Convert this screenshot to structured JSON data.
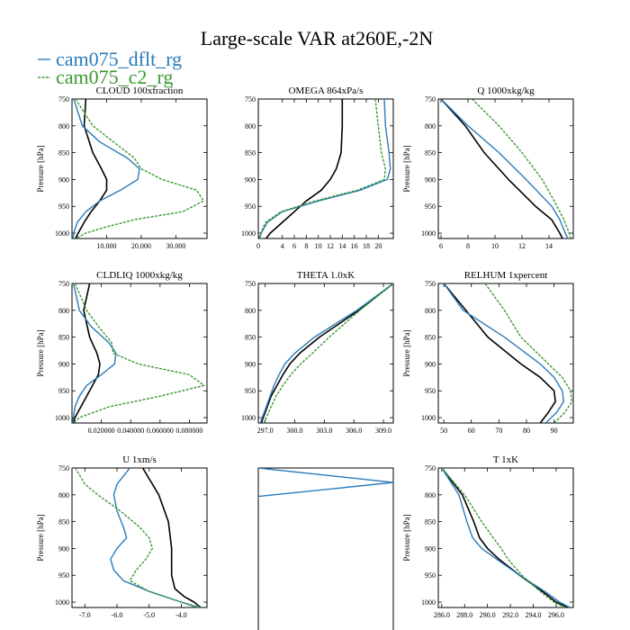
{
  "figure": {
    "title": "Large-scale VAR at260E,-2N",
    "legend": [
      {
        "label": "cam075_dflt_rg",
        "color": "#2b7bb9",
        "dashed": false
      },
      {
        "label": "cam075_c2_rg",
        "color": "#3a9a30",
        "dashed": true
      }
    ]
  },
  "colors": {
    "obs": "#000000",
    "dflt": "#2b7bb9",
    "c2": "#3a9a30"
  },
  "chart_data": [
    {
      "type": "line",
      "title": "CLOUD  100xfraction",
      "ylabel": "Pressure [hPa]",
      "xlim": [
        0,
        39
      ],
      "ylim": [
        1010,
        750
      ],
      "xticks": [
        10,
        20,
        30
      ],
      "xticklabels": [
        "10.000",
        "20.000",
        "30.000"
      ],
      "yticks": [
        750,
        800,
        850,
        900,
        950,
        1000
      ],
      "yticklabels": [
        "750",
        "800",
        "850",
        "900",
        "950",
        "1000"
      ],
      "series": [
        {
          "key": "obs",
          "p": [
            750,
            800,
            850,
            880,
            900,
            920,
            940,
            960,
            980,
            1000,
            1010
          ],
          "x": [
            4,
            3.5,
            6,
            8.5,
            10,
            10,
            8,
            5.5,
            3.5,
            1.8,
            1
          ]
        },
        {
          "key": "dflt",
          "p": [
            750,
            800,
            830,
            860,
            880,
            900,
            920,
            940,
            960,
            980,
            1000,
            1010
          ],
          "x": [
            0.5,
            3,
            8,
            16,
            19.5,
            19,
            14,
            8,
            4,
            1.5,
            0.5,
            0.3
          ]
        },
        {
          "key": "c2",
          "p": [
            750,
            800,
            830,
            860,
            880,
            900,
            920,
            940,
            960,
            975,
            990,
            1000,
            1010
          ],
          "x": [
            1,
            6,
            12,
            18,
            20,
            26,
            36,
            38,
            32,
            18,
            9,
            4,
            1
          ]
        }
      ]
    },
    {
      "type": "line",
      "title": "OMEGA  864xPa/s",
      "ylabel": "",
      "xlim": [
        0,
        22.5
      ],
      "ylim": [
        1010,
        750
      ],
      "xticks": [
        0,
        4,
        6,
        8,
        10,
        12,
        14,
        16,
        18,
        20
      ],
      "xticklabels": [
        "0",
        "4",
        "6",
        "8",
        "10",
        "12",
        "14",
        "16",
        "18",
        "20"
      ],
      "yticks": [
        750,
        800,
        850,
        900,
        950,
        1000
      ],
      "yticklabels": [
        "750",
        "800",
        "850",
        "900",
        "950",
        "1000"
      ],
      "series": [
        {
          "key": "obs",
          "p": [
            750,
            800,
            850,
            880,
            900,
            920,
            940,
            960,
            980,
            1000,
            1010
          ],
          "x": [
            14,
            14,
            13.8,
            13,
            12,
            10.5,
            8,
            6,
            4,
            2,
            1.3
          ]
        },
        {
          "key": "dflt",
          "p": [
            750,
            800,
            850,
            880,
            900,
            920,
            940,
            960,
            980,
            1000,
            1010
          ],
          "x": [
            21,
            21.2,
            21.8,
            22,
            21.5,
            17,
            10,
            4,
            1.5,
            0.5,
            0.2
          ]
        },
        {
          "key": "c2",
          "p": [
            750,
            800,
            850,
            880,
            900,
            920,
            940,
            960,
            980,
            1000,
            1010
          ],
          "x": [
            19.5,
            20,
            20.5,
            21.2,
            21,
            16.5,
            9.5,
            3.8,
            1.2,
            0.4,
            0.1
          ]
        }
      ]
    },
    {
      "type": "line",
      "title": "Q  1000xkg/kg",
      "ylabel": "Pressure [hPa]",
      "xlim": [
        5.8,
        15.8
      ],
      "ylim": [
        1010,
        750
      ],
      "xticks": [
        6,
        8,
        10,
        12,
        14
      ],
      "xticklabels": [
        "6",
        "8",
        "10",
        "12",
        "14"
      ],
      "yticks": [
        750,
        800,
        850,
        900,
        950,
        1000
      ],
      "yticklabels": [
        "750",
        "800",
        "850",
        "900",
        "950",
        "1000"
      ],
      "series": [
        {
          "key": "obs",
          "p": [
            750,
            800,
            850,
            900,
            950,
            975,
            1000,
            1010
          ],
          "x": [
            6,
            7.8,
            9.2,
            11,
            13,
            14.2,
            14.8,
            15
          ]
        },
        {
          "key": "dflt",
          "p": [
            750,
            800,
            850,
            900,
            950,
            975,
            1000,
            1010
          ],
          "x": [
            6,
            8,
            10.3,
            12.3,
            14.2,
            14.8,
            15.2,
            15.4
          ]
        },
        {
          "key": "c2",
          "p": [
            750,
            800,
            850,
            900,
            950,
            975,
            1000,
            1010
          ],
          "x": [
            8.3,
            10.3,
            12,
            13.5,
            14.6,
            15.1,
            15.5,
            15.6
          ]
        }
      ]
    },
    {
      "type": "line",
      "title": "CLDLIQ  1000xkg/kg",
      "ylabel": "Pressure [hPa]",
      "xlim": [
        0,
        0.092
      ],
      "ylim": [
        1010,
        750
      ],
      "xticks": [
        0.02,
        0.04,
        0.06,
        0.08
      ],
      "xticklabels": [
        "0.020000",
        "0.040000",
        "0.060000",
        "0.080000"
      ],
      "yticks": [
        750,
        800,
        850,
        900,
        950,
        1000
      ],
      "yticklabels": [
        "750",
        "800",
        "850",
        "900",
        "950",
        "1000"
      ],
      "series": [
        {
          "key": "obs",
          "p": [
            750,
            800,
            850,
            880,
            900,
            920,
            940,
            960,
            980,
            1000,
            1010
          ],
          "x": [
            0.012,
            0.008,
            0.012,
            0.017,
            0.019,
            0.018,
            0.014,
            0.01,
            0.006,
            0.002,
            0.001
          ]
        },
        {
          "key": "dflt",
          "p": [
            750,
            800,
            830,
            860,
            880,
            900,
            920,
            940,
            960,
            980,
            1000,
            1010
          ],
          "x": [
            0.001,
            0.005,
            0.013,
            0.025,
            0.03,
            0.029,
            0.02,
            0.01,
            0.005,
            0.002,
            0.001,
            0.0005
          ]
        },
        {
          "key": "c2",
          "p": [
            750,
            800,
            830,
            860,
            880,
            900,
            920,
            940,
            960,
            980,
            1000,
            1010
          ],
          "x": [
            0.002,
            0.01,
            0.018,
            0.027,
            0.028,
            0.045,
            0.08,
            0.09,
            0.06,
            0.025,
            0.005,
            0.001
          ]
        }
      ]
    },
    {
      "type": "line",
      "title": "THETA  1.0xK",
      "ylabel": "",
      "xlim": [
        296.3,
        310
      ],
      "ylim": [
        1010,
        750
      ],
      "xticks": [
        297,
        300,
        303,
        306,
        309
      ],
      "xticklabels": [
        "297.0",
        "300.0",
        "303.0",
        "306.0",
        "309.0"
      ],
      "yticks": [
        750,
        800,
        850,
        900,
        950,
        1000
      ],
      "yticklabels": [
        "750",
        "800",
        "850",
        "900",
        "950",
        "1000"
      ],
      "series": [
        {
          "key": "obs",
          "p": [
            750,
            800,
            850,
            880,
            900,
            920,
            940,
            960,
            980,
            1000,
            1010
          ],
          "x": [
            310,
            306.5,
            302.5,
            300.5,
            299.5,
            298.8,
            298.2,
            297.6,
            297.2,
            296.8,
            296.6
          ]
        },
        {
          "key": "dflt",
          "p": [
            750,
            800,
            850,
            880,
            900,
            920,
            940,
            960,
            980,
            1000,
            1010
          ],
          "x": [
            310,
            306.3,
            302,
            300,
            299,
            298.4,
            297.9,
            297.5,
            297.1,
            296.7,
            296.5
          ]
        },
        {
          "key": "c2",
          "p": [
            750,
            800,
            850,
            880,
            900,
            920,
            940,
            960,
            980,
            1000,
            1010
          ],
          "x": [
            310,
            306.6,
            303.5,
            301.8,
            300.6,
            299.6,
            298.8,
            298.1,
            297.6,
            297.1,
            296.9
          ]
        }
      ]
    },
    {
      "type": "line",
      "title": "RELHUM  1xpercent",
      "ylabel": "Pressure [hPa]",
      "xlim": [
        48,
        97
      ],
      "ylim": [
        1010,
        750
      ],
      "xticks": [
        50,
        60,
        70,
        80,
        90
      ],
      "xticklabels": [
        "50",
        "60",
        "70",
        "80",
        "90"
      ],
      "yticks": [
        750,
        800,
        850,
        900,
        950,
        1000
      ],
      "yticklabels": [
        "750",
        "800",
        "850",
        "900",
        "950",
        "1000"
      ],
      "series": [
        {
          "key": "obs",
          "p": [
            750,
            800,
            850,
            900,
            925,
            950,
            970,
            990,
            1010
          ],
          "x": [
            50,
            58,
            66,
            78,
            85,
            90,
            90.5,
            88,
            85
          ]
        },
        {
          "key": "dflt",
          "p": [
            750,
            800,
            850,
            900,
            925,
            950,
            970,
            990,
            1010
          ],
          "x": [
            50,
            57,
            72,
            85,
            90,
            93,
            93.5,
            91,
            87
          ]
        },
        {
          "key": "c2",
          "p": [
            750,
            800,
            850,
            900,
            925,
            950,
            970,
            990,
            1010
          ],
          "x": [
            65,
            72,
            78,
            88,
            93,
            96,
            96.5,
            94,
            90
          ]
        }
      ]
    },
    {
      "type": "line",
      "title": "U  1xm/s",
      "ylabel": "Pressure [hPa]",
      "xlim": [
        -7.4,
        -3.2
      ],
      "ylim": [
        1010,
        750
      ],
      "xticks": [
        -7,
        -6,
        -5,
        -4
      ],
      "xticklabels": [
        "-7.0",
        "-6.0",
        "-5.0",
        "-4.0"
      ],
      "yticks": [
        750,
        800,
        850,
        900,
        950,
        1000
      ],
      "yticklabels": [
        "750",
        "800",
        "850",
        "900",
        "950",
        "1000"
      ],
      "series": [
        {
          "key": "obs",
          "p": [
            750,
            800,
            850,
            900,
            950,
            975,
            990,
            1000,
            1010
          ],
          "x": [
            -5.2,
            -4.7,
            -4.4,
            -4.3,
            -4.3,
            -4.2,
            -3.9,
            -3.6,
            -3.4
          ]
        },
        {
          "key": "dflt",
          "p": [
            750,
            780,
            800,
            830,
            860,
            880,
            900,
            920,
            940,
            960,
            980,
            1000,
            1010
          ],
          "x": [
            -5.6,
            -6.0,
            -6.1,
            -6.0,
            -5.8,
            -5.7,
            -6.0,
            -6.2,
            -6.1,
            -5.8,
            -5.0,
            -4.0,
            -3.5
          ]
        },
        {
          "key": "c2",
          "p": [
            750,
            780,
            800,
            830,
            860,
            880,
            900,
            920,
            940,
            960,
            980,
            1000,
            1010
          ],
          "x": [
            -7.3,
            -7.0,
            -6.6,
            -5.9,
            -5.3,
            -5.0,
            -4.9,
            -5.1,
            -5.4,
            -5.6,
            -5.0,
            -4.0,
            -3.4
          ]
        }
      ]
    },
    {
      "type": "line",
      "title": "",
      "ylabel": "",
      "xlim": [
        0,
        1
      ],
      "ylim": [
        1010,
        750
      ],
      "xticks": [],
      "xticklabels": [],
      "yticks": [],
      "yticklabels": [],
      "series": [
        {
          "key": "dflt",
          "p": [
            750,
            777,
            803
          ],
          "x": [
            0,
            1,
            0
          ]
        }
      ]
    },
    {
      "type": "line",
      "title": "T  1xK",
      "ylabel": "Pressure [hPa]",
      "xlim": [
        285.7,
        297.5
      ],
      "ylim": [
        1010,
        750
      ],
      "xticks": [
        286,
        288,
        290,
        292,
        294,
        296
      ],
      "xticklabels": [
        "286.0",
        "288.0",
        "290.0",
        "292.0",
        "294.0",
        "296.0"
      ],
      "yticks": [
        750,
        800,
        850,
        900,
        950,
        1000
      ],
      "yticklabels": [
        "750",
        "800",
        "850",
        "900",
        "950",
        "1000"
      ],
      "series": [
        {
          "key": "obs",
          "p": [
            750,
            800,
            850,
            880,
            900,
            920,
            950,
            980,
            1000,
            1010
          ],
          "x": [
            286,
            287.8,
            288.8,
            289.3,
            290,
            291,
            292.8,
            294.8,
            296,
            297
          ]
        },
        {
          "key": "dflt",
          "p": [
            750,
            800,
            850,
            880,
            900,
            920,
            950,
            980,
            1000,
            1010
          ],
          "x": [
            286,
            287.5,
            288.2,
            288.7,
            289.5,
            290.8,
            292.8,
            295,
            296.3,
            297.2
          ]
        },
        {
          "key": "c2",
          "p": [
            750,
            800,
            850,
            880,
            900,
            920,
            950,
            980,
            1000,
            1010
          ],
          "x": [
            286,
            288,
            289.5,
            290.5,
            291.2,
            291.8,
            293,
            294.6,
            295.8,
            296.8
          ]
        }
      ]
    }
  ]
}
